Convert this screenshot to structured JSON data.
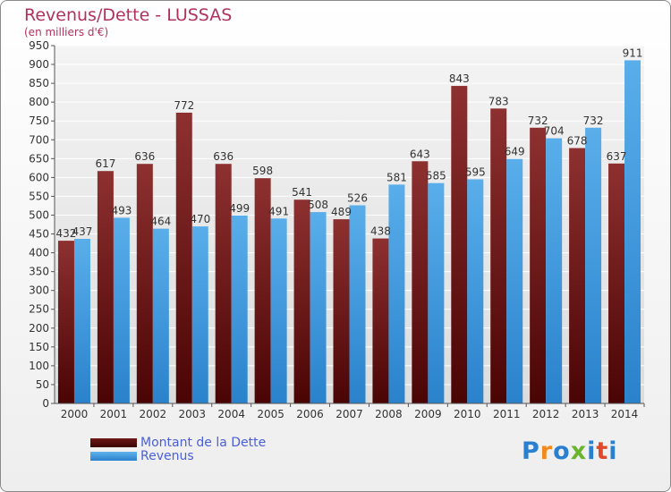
{
  "header": {
    "title": "Revenus/Dette - LUSSAS",
    "subtitle": "(en milliers d'€)"
  },
  "chart_data": {
    "type": "bar",
    "categories": [
      "2000",
      "2001",
      "2002",
      "2003",
      "2004",
      "2005",
      "2006",
      "2007",
      "2008",
      "2009",
      "2010",
      "2011",
      "2012",
      "2013",
      "2014"
    ],
    "series": [
      {
        "name": "Montant de la Dette",
        "color": "#7a1e1e",
        "values": [
          432,
          617,
          636,
          772,
          636,
          598,
          541,
          489,
          438,
          643,
          843,
          783,
          732,
          678,
          637
        ]
      },
      {
        "name": "Revenus",
        "color": "#3f9de3",
        "values": [
          437,
          493,
          464,
          470,
          499,
          491,
          508,
          526,
          581,
          585,
          595,
          649,
          704,
          732,
          911
        ]
      }
    ],
    "ylim": [
      0,
      950
    ],
    "ytick_step": 50,
    "grid": true,
    "legend_position": "bottom-left"
  },
  "legend": {
    "items": [
      {
        "label": "Montant de la Dette",
        "color": "#7a1e1e"
      },
      {
        "label": "Revenus",
        "color": "#3f9de3"
      }
    ]
  },
  "brand": {
    "letters": [
      "P",
      "r",
      "o",
      "x",
      "i",
      "t",
      "i"
    ],
    "colors": [
      "#2a7fd0",
      "#f08a1c",
      "#2a7fd0",
      "#6ab52b",
      "#2a7fd0",
      "#e04a2a",
      "#2a7fd0"
    ]
  }
}
